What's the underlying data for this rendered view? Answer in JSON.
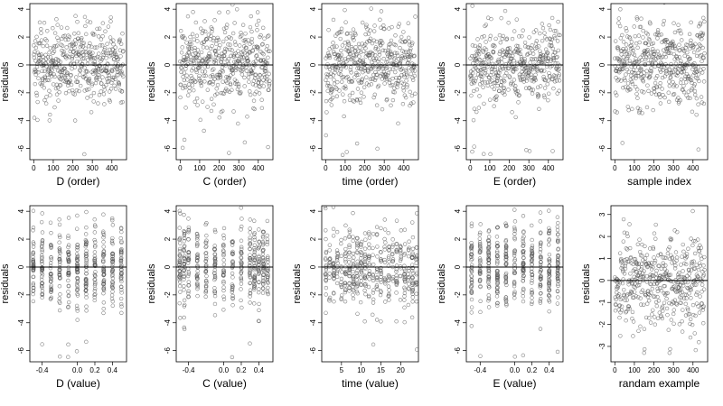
{
  "chart_data": [
    {
      "type": "scatter",
      "xlabel": "D (order)",
      "ylabel": "residuals",
      "xticks": [
        0,
        100,
        200,
        300,
        400
      ],
      "yticks": [
        4,
        2,
        0,
        -2,
        -4,
        -6
      ],
      "ytick_labels": [
        "4",
        "2",
        "0",
        "-2",
        "-4",
        "-6"
      ],
      "xlim": [
        -20,
        475
      ],
      "ylim": [
        -6.8,
        4.4
      ],
      "x_kind": "index",
      "n": 460,
      "hline": 0,
      "grid": false
    },
    {
      "type": "scatter",
      "xlabel": "C (order)",
      "ylabel": "residuals",
      "xticks": [
        0,
        100,
        200,
        300,
        400
      ],
      "yticks": [
        4,
        2,
        0,
        -2,
        -4,
        -6
      ],
      "ytick_labels": [
        "4",
        "2",
        "0",
        "-2",
        "-4",
        "-6"
      ],
      "xlim": [
        -20,
        475
      ],
      "ylim": [
        -6.8,
        4.4
      ],
      "x_kind": "index",
      "n": 460,
      "hline": 0,
      "grid": false
    },
    {
      "type": "scatter",
      "xlabel": "time (order)",
      "ylabel": "residuals",
      "xticks": [
        0,
        100,
        200,
        300,
        400
      ],
      "yticks": [
        4,
        2,
        0,
        -2,
        -4,
        -6
      ],
      "ytick_labels": [
        "4",
        "2",
        "0",
        "-2",
        "-4",
        "-6"
      ],
      "xlim": [
        -20,
        475
      ],
      "ylim": [
        -6.8,
        4.4
      ],
      "x_kind": "index",
      "n": 460,
      "hline": 0,
      "grid": false
    },
    {
      "type": "scatter",
      "xlabel": "E (order)",
      "ylabel": "residuals",
      "xticks": [
        0,
        100,
        200,
        300,
        400
      ],
      "yticks": [
        4,
        2,
        0,
        -2,
        -4,
        -6
      ],
      "ytick_labels": [
        "4",
        "2",
        "0",
        "-2",
        "-4",
        "-6"
      ],
      "xlim": [
        -20,
        475
      ],
      "ylim": [
        -6.8,
        4.4
      ],
      "x_kind": "index",
      "n": 460,
      "hline": 0,
      "grid": false
    },
    {
      "type": "scatter",
      "xlabel": "sample index",
      "ylabel": "residuals",
      "xticks": [
        0,
        100,
        200,
        300,
        400
      ],
      "yticks": [
        4,
        2,
        0,
        -2,
        -4,
        -6
      ],
      "ytick_labels": [
        "4",
        "2",
        "0",
        "-2",
        "-4",
        "-6"
      ],
      "xlim": [
        -20,
        475
      ],
      "ylim": [
        -6.8,
        4.4
      ],
      "x_kind": "index",
      "n": 460,
      "hline": 0,
      "grid": false
    },
    {
      "type": "scatter",
      "xlabel": "D (value)",
      "ylabel": "residuals",
      "xticks": [
        -0.4,
        0.0,
        0.2,
        0.4
      ],
      "xtick_labels": [
        "-0.4",
        "0.0",
        "0.2",
        "0.4"
      ],
      "yticks": [
        4,
        2,
        0,
        -2,
        -4,
        -6
      ],
      "ytick_labels": [
        "4",
        "2",
        "0",
        "-2",
        "-4",
        "-6"
      ],
      "xlim": [
        -0.54,
        0.56
      ],
      "ylim": [
        -6.8,
        4.4
      ],
      "x_kind": "levels",
      "x_levels": [
        -0.5,
        -0.4,
        -0.3,
        -0.2,
        -0.1,
        0.0,
        0.1,
        0.2,
        0.3,
        0.4,
        0.5
      ],
      "n": 460,
      "hline": 0,
      "grid": false
    },
    {
      "type": "scatter",
      "xlabel": "C (value)",
      "ylabel": "residuals",
      "xticks": [
        -0.4,
        0.0,
        0.2,
        0.4
      ],
      "xtick_labels": [
        "-0.4",
        "0.0",
        "0.2",
        "0.4"
      ],
      "yticks": [
        4,
        2,
        0,
        -2,
        -4,
        -6
      ],
      "ytick_labels": [
        "4",
        "2",
        "0",
        "-2",
        "-4",
        "-6"
      ],
      "xlim": [
        -0.54,
        0.56
      ],
      "ylim": [
        -6.8,
        4.4
      ],
      "x_kind": "levels",
      "x_levels": [
        -0.5,
        -0.45,
        -0.4,
        -0.3,
        -0.2,
        -0.1,
        0.0,
        0.1,
        0.2,
        0.3,
        0.35,
        0.4,
        0.45,
        0.5
      ],
      "n": 460,
      "hline": 0,
      "grid": false
    },
    {
      "type": "scatter",
      "xlabel": "time (value)",
      "ylabel": "residuals",
      "xticks": [
        5,
        10,
        15,
        20
      ],
      "yticks": [
        4,
        2,
        0,
        -2,
        -4,
        -6
      ],
      "ytick_labels": [
        "4",
        "2",
        "0",
        "-2",
        "-4",
        "-6"
      ],
      "xlim": [
        0,
        24.5
      ],
      "ylim": [
        -6.8,
        4.4
      ],
      "x_kind": "levels",
      "x_levels": [
        1,
        2,
        3,
        4,
        5,
        6,
        7,
        8,
        9,
        10,
        11,
        12,
        13,
        14,
        15,
        16,
        17,
        18,
        19,
        20,
        21,
        22,
        23,
        24
      ],
      "n": 460,
      "hline": 0,
      "grid": false
    },
    {
      "type": "scatter",
      "xlabel": "E (value)",
      "ylabel": "residuals",
      "xticks": [
        -0.4,
        0.0,
        0.2,
        0.4
      ],
      "xtick_labels": [
        "-0.4",
        "0.0",
        "0.2",
        "0.4"
      ],
      "yticks": [
        4,
        2,
        0,
        -2,
        -4,
        -6
      ],
      "ytick_labels": [
        "4",
        "2",
        "0",
        "-2",
        "-4",
        "-6"
      ],
      "xlim": [
        -0.56,
        0.56
      ],
      "ylim": [
        -6.8,
        4.4
      ],
      "x_kind": "levels",
      "x_levels": [
        -0.5,
        -0.4,
        -0.3,
        -0.2,
        -0.1,
        0.0,
        0.1,
        0.2,
        0.3,
        0.4,
        0.5
      ],
      "n": 460,
      "hline": 0,
      "grid": false
    },
    {
      "type": "scatter",
      "xlabel": "randam example",
      "ylabel": "residuals",
      "xticks": [
        0,
        100,
        200,
        300,
        400
      ],
      "yticks": [
        3,
        2,
        1,
        0,
        -1,
        -2,
        -3
      ],
      "ytick_labels": [
        "3",
        "2",
        "1",
        "0",
        "-1",
        "-2",
        "-3"
      ],
      "xlim": [
        -20,
        475
      ],
      "ylim": [
        -3.7,
        3.4
      ],
      "x_kind": "index",
      "n": 460,
      "hline": 0,
      "grid": false
    }
  ],
  "style": {
    "point_color": "#555555",
    "line_color": "#000000"
  }
}
